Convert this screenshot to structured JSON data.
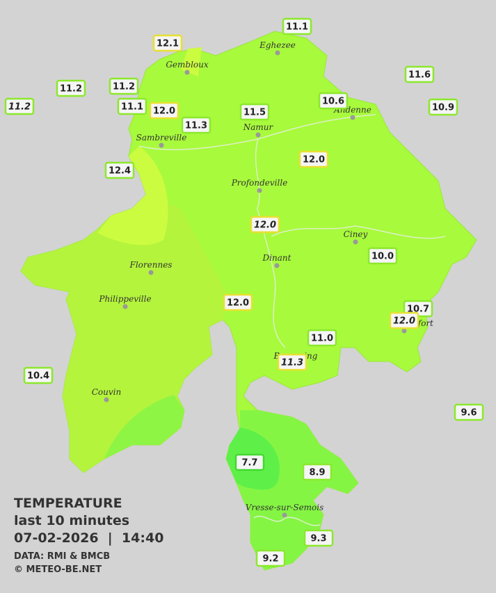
{
  "legend": {
    "title": "TEMPERATURE",
    "period": "last 10 minutes",
    "datetime": "07-02-2026  |  14:40",
    "source": "DATA: RMI & BMCB",
    "credit": "© METEO-BE.NET"
  },
  "cities": [
    "Eghezee",
    "Gembloux",
    "Andenne",
    "Namur",
    "Sambreville",
    "Profondeville",
    "Ciney",
    "Dinant",
    "Florennes",
    "Philippeville",
    "Beauraing",
    "Rochefort",
    "Couvin",
    "Vresse-sur-Semois"
  ],
  "stations": [
    "11.1",
    "12.1",
    "11.2",
    "11.2",
    "11.2",
    "11.1",
    "12.0",
    "11.3",
    "11.5",
    "10.6",
    "11.6",
    "10.9",
    "12.4",
    "12.0",
    "12.0",
    "10.0",
    "12.0",
    "10.7",
    "12.0",
    "11.0",
    "11.3",
    "10.4",
    "9.6",
    "7.7",
    "8.9",
    "9.3",
    "9.2"
  ]
}
